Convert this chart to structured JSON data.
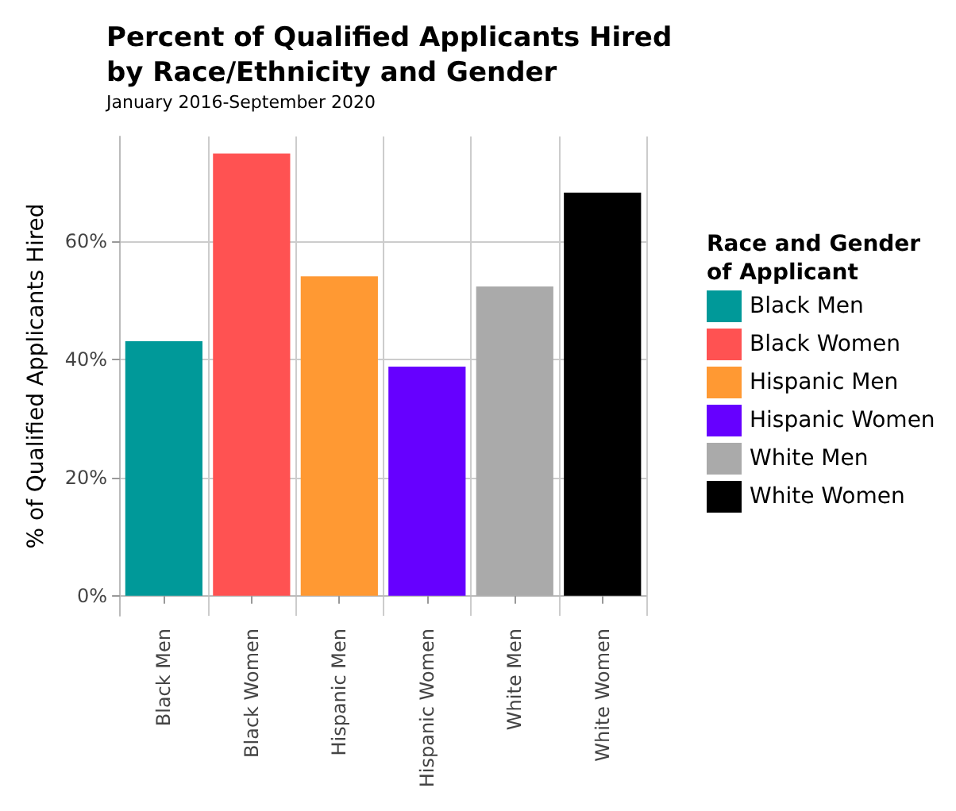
{
  "chart_data": {
    "type": "bar",
    "title": "Percent of Qualified Applicants Hired\nby Race/Ethnicity and Gender",
    "subtitle": "January 2016-September 2020",
    "ylabel": "% of Qualified Applicants Hired",
    "legend_title": "Race and Gender\nof Applicant",
    "categories": [
      "Black Men",
      "Black Women",
      "Hispanic Men",
      "Hispanic Women",
      "White Men",
      "White Women"
    ],
    "series": [
      {
        "name": "Black Men",
        "color": "#009999",
        "values": [
          43.1,
          null,
          null,
          null,
          null,
          null
        ]
      },
      {
        "name": "Black Women",
        "color": "#ff5252",
        "values": [
          null,
          74.9,
          null,
          null,
          null,
          null
        ]
      },
      {
        "name": "Hispanic Men",
        "color": "#ff9933",
        "values": [
          null,
          null,
          54.1,
          null,
          null,
          null
        ]
      },
      {
        "name": "Hispanic Women",
        "color": "#6600ff",
        "values": [
          null,
          null,
          null,
          38.8,
          null,
          null
        ]
      },
      {
        "name": "White Men",
        "color": "#aaaaaa",
        "values": [
          null,
          null,
          null,
          null,
          52.4,
          null
        ]
      },
      {
        "name": "White Women",
        "color": "#000000",
        "values": [
          null,
          null,
          null,
          null,
          null,
          68.3
        ]
      }
    ],
    "ylim": [
      -3.4,
      77.8
    ],
    "yticks": [
      {
        "value": 0,
        "label": "0%"
      },
      {
        "value": 20,
        "label": "20%"
      },
      {
        "value": 40,
        "label": "40%"
      },
      {
        "value": 60,
        "label": "60%"
      }
    ],
    "grid": true,
    "legend": "right"
  }
}
